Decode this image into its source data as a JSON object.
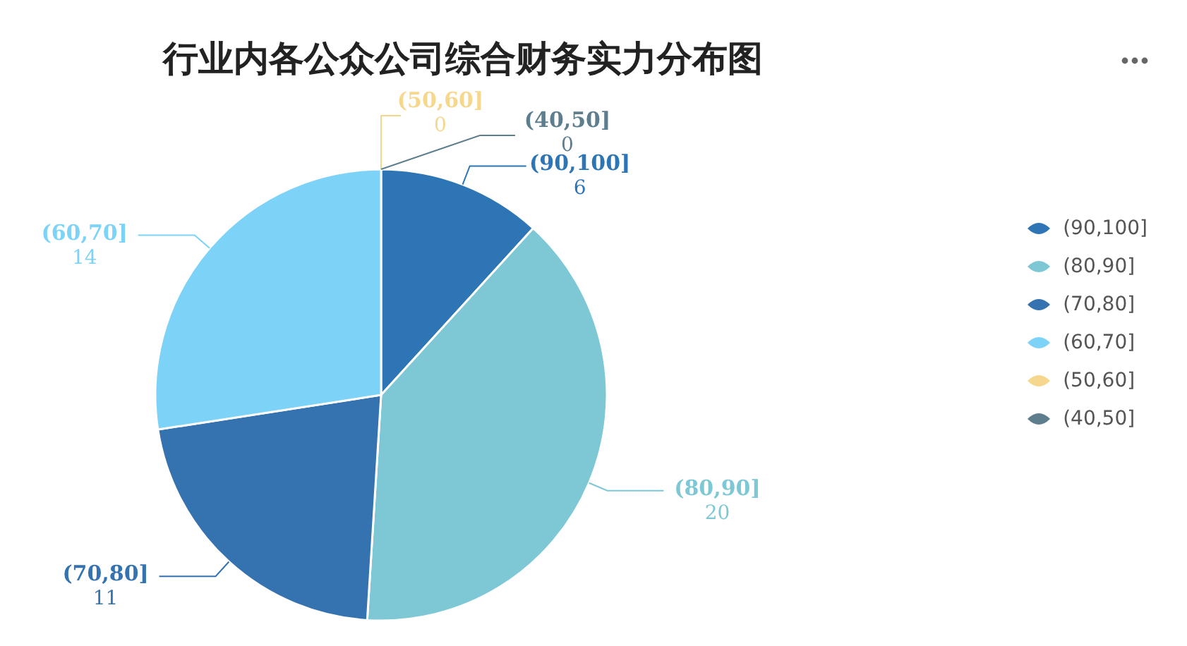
{
  "chart_data": {
    "type": "pie",
    "title": "行业内各公众公司综合财务实力分布图",
    "categories": [
      "(90,100]",
      "(80,90]",
      "(70,80]",
      "(60,70]",
      "(50,60]",
      "(40,50]"
    ],
    "values": [
      6,
      20,
      11,
      14,
      0,
      0
    ],
    "colors": [
      "#2e75b6",
      "#7ec8d6",
      "#3572b0",
      "#7dd3f7",
      "#f5d78e",
      "#5e7e8e"
    ],
    "value_labels": [
      "6",
      "20",
      "11",
      "14",
      "0",
      "0"
    ],
    "legend": "right"
  }
}
